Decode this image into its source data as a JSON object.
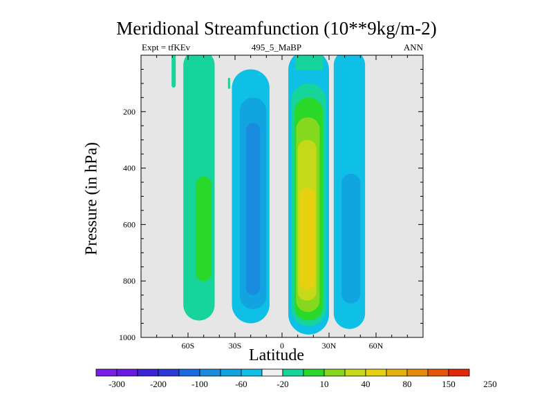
{
  "chart_data": {
    "type": "contour",
    "title": "Meridional Streamfunction (10**9kg/m-2)",
    "subtitle_left": "Expt = tfKEv",
    "subtitle_center": "495_5_MaBP",
    "subtitle_right": "ANN",
    "xlabel": "Latitude",
    "ylabel": "Pressure (in hPa)",
    "xlim": [
      -90,
      90
    ],
    "ylim": [
      1000,
      0
    ],
    "x_ticks": [
      {
        "value": -60,
        "label": "60S"
      },
      {
        "value": -30,
        "label": "30S"
      },
      {
        "value": 0,
        "label": "0"
      },
      {
        "value": 30,
        "label": "30N"
      },
      {
        "value": 60,
        "label": "60N"
      }
    ],
    "y_ticks": [
      {
        "value": 200,
        "label": "200"
      },
      {
        "value": 400,
        "label": "400"
      },
      {
        "value": 600,
        "label": "600"
      },
      {
        "value": 800,
        "label": "800"
      },
      {
        "value": 1000,
        "label": "1000"
      }
    ],
    "background_color": "#e6e6e6",
    "colorbar": {
      "labels": [
        "-300",
        "-200",
        "-100",
        "-60",
        "-20",
        "10",
        "40",
        "80",
        "150",
        "250"
      ],
      "colors": [
        "#7a1fe6",
        "#6a1ae0",
        "#3a24d6",
        "#2a3ad6",
        "#1a6ae0",
        "#1a8ce0",
        "#12a4e0",
        "#0ec0e6",
        "#f0f0f0",
        "#16d49a",
        "#2ad82a",
        "#86d81e",
        "#c6d81a",
        "#e6d010",
        "#e6b00e",
        "#e68a0c",
        "#e6560a",
        "#e02a0a"
      ]
    },
    "cells": [
      {
        "name": "southern-positive-cell",
        "x_range": [
          -67,
          -42
        ],
        "p_top": 0,
        "p_bottom": 940,
        "peak_value": 20,
        "peak_pressure": 680
      },
      {
        "name": "southern-negative-cell",
        "x_range": [
          -33,
          -4
        ],
        "p_top": 50,
        "p_bottom": 950,
        "peak_value": -60,
        "peak_pressure": 600
      },
      {
        "name": "tropical-positive-cell",
        "x_range": [
          4,
          30
        ],
        "p_top": 0,
        "p_bottom": 990,
        "peak_value": 80,
        "peak_pressure": 700
      },
      {
        "name": "northern-negative-cell",
        "x_range": [
          33,
          55
        ],
        "p_top": 0,
        "p_bottom": 960,
        "peak_value": -20,
        "peak_pressure": 700
      }
    ]
  }
}
